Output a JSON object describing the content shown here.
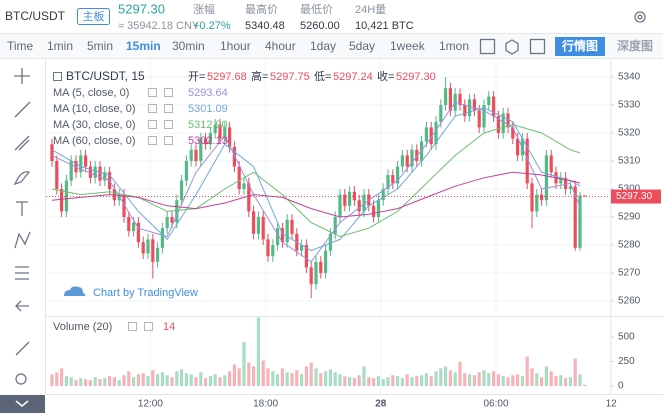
{
  "header": {
    "pair": "BTC/USDT",
    "badge": "主板",
    "price": "5297.30",
    "cny": "≈ 35942.18 CNY",
    "stats": [
      {
        "label": "涨幅",
        "value": "+0.27%"
      },
      {
        "label": "最高价",
        "value": "5340.48"
      },
      {
        "label": "最低价",
        "value": "5260.00"
      },
      {
        "label": "24H量",
        "value": "10,421 BTC"
      }
    ]
  },
  "toolbar": {
    "intervals": [
      "Time",
      "1min",
      "5min",
      "15min",
      "30min",
      "1hour",
      "4hour",
      "1day",
      "5day",
      "1week",
      "1mon"
    ],
    "active": "15min",
    "tabs": [
      "行情图",
      "深度图"
    ]
  },
  "chart": {
    "symbol": "BTC/USDT, 15",
    "ohlc": [
      {
        "label": "开=",
        "value": "5297.68"
      },
      {
        "label": "高=",
        "value": "5297.75"
      },
      {
        "label": "低=",
        "value": "5297.24"
      },
      {
        "label": "收=",
        "value": "5297.30"
      }
    ],
    "up_color": "#53b987",
    "down_color": "#eb4d5c",
    "volume_up_color": "#a9dcc5",
    "volume_down_color": "#f5b3b8",
    "ylim": [
      5255,
      5345
    ],
    "yticks": [
      5260,
      5270,
      5280,
      5290,
      5300,
      5310,
      5320,
      5330,
      5340
    ],
    "grid": true,
    "xticks": [
      {
        "value": 20.5,
        "label": "12:00"
      },
      {
        "value": 44.5,
        "label": "18:00"
      },
      {
        "value": 68.5,
        "label": "28"
      },
      {
        "value": 92.5,
        "label": "06:00"
      },
      {
        "value": 116.5,
        "label": "12"
      }
    ],
    "ma_index": [
      0,
      6,
      12,
      18,
      24,
      30,
      36,
      42,
      48,
      54,
      60,
      66,
      72,
      78,
      84,
      90,
      96,
      102,
      108,
      110
    ],
    "ma": [
      {
        "name": "MA (5, close, 0)",
        "value": "5293.64",
        "color": "#9b8fe0",
        "values": [
          5312,
          5307,
          5303,
          5286,
          5283,
          5306,
          5319,
          5298,
          5281,
          5274,
          5288,
          5296,
          5303,
          5316,
          5331,
          5328,
          5322,
          5300,
          5302,
          5293.64
        ]
      },
      {
        "name": "MA (10, close, 0)",
        "value": "5301.09",
        "color": "#6fa8dc",
        "values": [
          5314,
          5308,
          5305,
          5292,
          5282,
          5298,
          5316,
          5308,
          5284,
          5278,
          5282,
          5294,
          5300,
          5312,
          5326,
          5329,
          5324,
          5306,
          5303,
          5301.09
        ]
      },
      {
        "name": "MA (30, close, 0)",
        "value": "5312.90",
        "color": "#6cc070",
        "values": [
          5300,
          5298,
          5299,
          5297,
          5292,
          5293,
          5300,
          5306,
          5298,
          5288,
          5283,
          5286,
          5292,
          5302,
          5312,
          5320,
          5323,
          5320,
          5314,
          5312.9
        ]
      },
      {
        "name": "MA (60, close, 0)",
        "value": "5302.13",
        "color": "#c2429a",
        "values": [
          5296,
          5297,
          5298,
          5297,
          5294,
          5293,
          5295,
          5298,
          5297,
          5293,
          5290,
          5291,
          5293,
          5297,
          5301,
          5304,
          5306,
          5305,
          5303,
          5302.13
        ]
      }
    ],
    "candles": [
      [
        5316,
        5318,
        5308,
        5310
      ],
      [
        5310,
        5312,
        5298,
        5300
      ],
      [
        5300,
        5302,
        5290,
        5292
      ],
      [
        5292,
        5305,
        5290,
        5303
      ],
      [
        5303,
        5312,
        5301,
        5310
      ],
      [
        5310,
        5312,
        5304,
        5306
      ],
      [
        5306,
        5314,
        5304,
        5312
      ],
      [
        5312,
        5314,
        5306,
        5308
      ],
      [
        5308,
        5310,
        5302,
        5304
      ],
      [
        5304,
        5310,
        5302,
        5308
      ],
      [
        5308,
        5310,
        5301,
        5303
      ],
      [
        5303,
        5308,
        5301,
        5306
      ],
      [
        5306,
        5308,
        5298,
        5300
      ],
      [
        5300,
        5302,
        5294,
        5296
      ],
      [
        5296,
        5300,
        5294,
        5298
      ],
      [
        5298,
        5300,
        5288,
        5290
      ],
      [
        5290,
        5292,
        5283,
        5285
      ],
      [
        5285,
        5290,
        5283,
        5288
      ],
      [
        5288,
        5290,
        5279,
        5281
      ],
      [
        5281,
        5283,
        5275,
        5277
      ],
      [
        5277,
        5284,
        5275,
        5282
      ],
      [
        5282,
        5284,
        5268,
        5274
      ],
      [
        5274,
        5281,
        5272,
        5279
      ],
      [
        5279,
        5288,
        5277,
        5286
      ],
      [
        5286,
        5292,
        5284,
        5290
      ],
      [
        5290,
        5292,
        5286,
        5288
      ],
      [
        5288,
        5298,
        5286,
        5296
      ],
      [
        5296,
        5305,
        5294,
        5303
      ],
      [
        5303,
        5312,
        5301,
        5310
      ],
      [
        5310,
        5316,
        5308,
        5314
      ],
      [
        5314,
        5316,
        5308,
        5310
      ],
      [
        5310,
        5320,
        5308,
        5318
      ],
      [
        5318,
        5320,
        5314,
        5316
      ],
      [
        5316,
        5322,
        5314,
        5320
      ],
      [
        5320,
        5325,
        5318,
        5323
      ],
      [
        5323,
        5325,
        5316,
        5318
      ],
      [
        5318,
        5324,
        5316,
        5322
      ],
      [
        5322,
        5324,
        5313,
        5315
      ],
      [
        5315,
        5317,
        5306,
        5308
      ],
      [
        5308,
        5310,
        5298,
        5300
      ],
      [
        5300,
        5304,
        5298,
        5302
      ],
      [
        5302,
        5304,
        5290,
        5292
      ],
      [
        5292,
        5294,
        5282,
        5284
      ],
      [
        5284,
        5292,
        5282,
        5290
      ],
      [
        5290,
        5292,
        5280,
        5282
      ],
      [
        5282,
        5284,
        5274,
        5276
      ],
      [
        5276,
        5282,
        5274,
        5280
      ],
      [
        5280,
        5288,
        5278,
        5286
      ],
      [
        5286,
        5288,
        5279,
        5281
      ],
      [
        5281,
        5291,
        5279,
        5289
      ],
      [
        5289,
        5291,
        5282,
        5284
      ],
      [
        5284,
        5286,
        5276,
        5278
      ],
      [
        5278,
        5282,
        5276,
        5280
      ],
      [
        5280,
        5282,
        5270,
        5272
      ],
      [
        5272,
        5274,
        5261,
        5266
      ],
      [
        5266,
        5276,
        5264,
        5274
      ],
      [
        5274,
        5276,
        5268,
        5270
      ],
      [
        5270,
        5280,
        5268,
        5278
      ],
      [
        5278,
        5286,
        5276,
        5284
      ],
      [
        5284,
        5292,
        5282,
        5290
      ],
      [
        5290,
        5300,
        5288,
        5298
      ],
      [
        5298,
        5300,
        5292,
        5294
      ],
      [
        5294,
        5301,
        5292,
        5299
      ],
      [
        5299,
        5301,
        5294,
        5296
      ],
      [
        5296,
        5298,
        5290,
        5292
      ],
      [
        5292,
        5300,
        5290,
        5298
      ],
      [
        5298,
        5300,
        5292,
        5294
      ],
      [
        5294,
        5296,
        5288,
        5290
      ],
      [
        5290,
        5298,
        5288,
        5296
      ],
      [
        5296,
        5302,
        5294,
        5300
      ],
      [
        5300,
        5307,
        5298,
        5305
      ],
      [
        5305,
        5307,
        5300,
        5302
      ],
      [
        5302,
        5310,
        5300,
        5308
      ],
      [
        5308,
        5314,
        5306,
        5312
      ],
      [
        5312,
        5314,
        5306,
        5308
      ],
      [
        5308,
        5316,
        5306,
        5314
      ],
      [
        5314,
        5316,
        5308,
        5310
      ],
      [
        5310,
        5319,
        5308,
        5317
      ],
      [
        5317,
        5324,
        5315,
        5322
      ],
      [
        5322,
        5324,
        5314,
        5316
      ],
      [
        5316,
        5326,
        5314,
        5324
      ],
      [
        5324,
        5332,
        5322,
        5330
      ],
      [
        5330,
        5340,
        5328,
        5336
      ],
      [
        5336,
        5338,
        5326,
        5328
      ],
      [
        5328,
        5336,
        5326,
        5334
      ],
      [
        5334,
        5336,
        5328,
        5330
      ],
      [
        5330,
        5332,
        5324,
        5326
      ],
      [
        5326,
        5334,
        5324,
        5332
      ],
      [
        5332,
        5334,
        5326,
        5328
      ],
      [
        5328,
        5330,
        5320,
        5322
      ],
      [
        5322,
        5332,
        5320,
        5330
      ],
      [
        5330,
        5335,
        5328,
        5333
      ],
      [
        5333,
        5335,
        5324,
        5326
      ],
      [
        5326,
        5328,
        5318,
        5320
      ],
      [
        5320,
        5329,
        5318,
        5327
      ],
      [
        5327,
        5329,
        5320,
        5322
      ],
      [
        5322,
        5324,
        5316,
        5318
      ],
      [
        5318,
        5320,
        5310,
        5312
      ],
      [
        5312,
        5320,
        5310,
        5318
      ],
      [
        5318,
        5320,
        5300,
        5302
      ],
      [
        5302,
        5304,
        5286,
        5292
      ],
      [
        5292,
        5300,
        5290,
        5298
      ],
      [
        5298,
        5300,
        5294,
        5296
      ],
      [
        5296,
        5314,
        5294,
        5312
      ],
      [
        5312,
        5314,
        5304,
        5306
      ],
      [
        5306,
        5308,
        5300,
        5302
      ],
      [
        5302,
        5306,
        5300,
        5304
      ],
      [
        5304,
        5306,
        5298,
        5300
      ],
      [
        5300,
        5303,
        5298,
        5301
      ],
      [
        5301,
        5303,
        5278,
        5279
      ],
      [
        5279,
        5299,
        5278,
        5297.68
      ],
      [
        5297.68,
        5297.75,
        5297.24,
        5297.3
      ]
    ],
    "volume_label": "Volume (20)",
    "vlim": [
      0,
      700
    ],
    "vticks": [
      0,
      250,
      500
    ],
    "volumes": [
      120,
      140,
      180,
      100,
      90,
      60,
      80,
      70,
      60,
      90,
      70,
      80,
      100,
      90,
      60,
      110,
      150,
      90,
      120,
      130,
      100,
      160,
      120,
      140,
      110,
      90,
      150,
      170,
      130,
      120,
      90,
      140,
      80,
      100,
      120,
      90,
      110,
      150,
      220,
      180,
      450,
      240,
      200,
      700,
      260,
      180,
      150,
      120,
      180,
      140,
      130,
      160,
      120,
      200,
      240,
      180,
      130,
      150,
      170,
      140,
      120,
      100,
      90,
      80,
      110,
      200,
      90,
      80,
      100,
      70,
      90,
      110,
      100,
      80,
      120,
      90,
      100,
      110,
      130,
      100,
      150,
      180,
      200,
      160,
      140,
      250,
      130,
      120,
      110,
      140,
      160,
      130,
      150,
      120,
      100,
      90,
      110,
      120,
      100,
      300,
      180,
      130,
      90,
      200,
      150,
      100,
      110,
      80,
      90,
      280,
      120,
      14
    ],
    "watermark": "Chart by TradingView"
  }
}
